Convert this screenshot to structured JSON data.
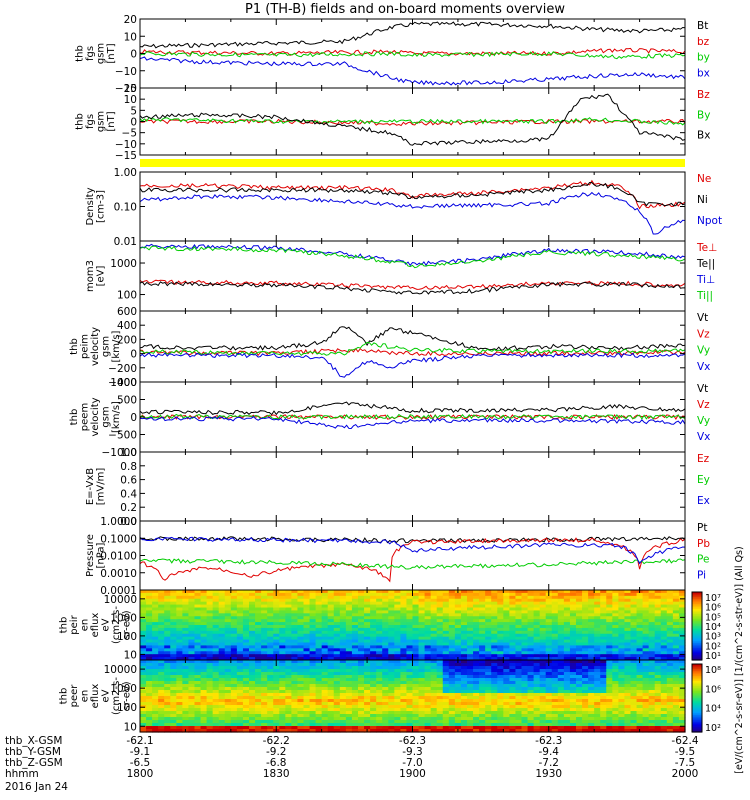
{
  "title": "P1 (TH-B) fields and on-board moments overview",
  "date_label": "2016 Jan 24",
  "ephemeris": {
    "row_labels": [
      "thb_X-GSM",
      "thb_Y-GSM",
      "thb_Z-GSM",
      "hhmm"
    ],
    "columns": [
      [
        "-62.1",
        "-9.1",
        "-6.5",
        "1800"
      ],
      [
        "-62.2",
        "-9.2",
        "-6.8",
        "1830"
      ],
      [
        "-62.3",
        "-9.3",
        "-7.0",
        "1900"
      ],
      [
        "-62.3",
        "-9.4",
        "-7.2",
        "1930"
      ],
      [
        "-62.4",
        "-9.5",
        "-7.5",
        "2000"
      ]
    ]
  },
  "colors": {
    "black": "#000000",
    "red": "#e00000",
    "green": "#00cc00",
    "blue": "#0000e0",
    "yellow": "#ffff00"
  },
  "chart_data": [
    {
      "type": "line",
      "ylabel": [
        "thb",
        "fgs",
        "gsm",
        "[nT]"
      ],
      "ylim": [
        -20,
        20
      ],
      "ticks": [
        {
          "v": 20,
          "t": "20"
        },
        {
          "v": 10,
          "t": "10"
        },
        {
          "v": 0,
          "t": "0"
        },
        {
          "v": -10,
          "t": "−10"
        },
        {
          "v": -20,
          "t": "−20"
        }
      ],
      "series": [
        {
          "name": "Bt",
          "color": "black",
          "x": [
            1800,
            1815,
            1830,
            1845,
            1855,
            1900,
            1915,
            1930,
            1940,
            1950,
            2000
          ],
          "y": [
            4,
            5,
            6,
            7,
            15,
            17,
            17,
            16,
            14,
            13,
            14
          ]
        },
        {
          "name": "bz",
          "color": "red",
          "x": [
            1800,
            1830,
            1855,
            1900,
            1930,
            1945,
            2000
          ],
          "y": [
            1,
            0,
            1,
            0,
            0,
            2,
            1
          ]
        },
        {
          "name": "by",
          "color": "green",
          "x": [
            1800,
            1830,
            1855,
            1900,
            1930,
            1945,
            2000
          ],
          "y": [
            0,
            -1,
            0,
            -1,
            0,
            -2,
            -1
          ]
        },
        {
          "name": "bx",
          "color": "blue",
          "x": [
            1800,
            1815,
            1830,
            1845,
            1855,
            1900,
            1915,
            1930,
            1940,
            1950,
            2000
          ],
          "y": [
            -3,
            -5,
            -6,
            -6,
            -14,
            -17,
            -17,
            -15,
            -13,
            -12,
            -14
          ]
        }
      ]
    },
    {
      "type": "line",
      "ylabel": [
        "thb",
        "fgs",
        "gsm",
        "[nT]"
      ],
      "ylim": [
        -15,
        15
      ],
      "ticks": [
        {
          "v": 15,
          "t": "15"
        },
        {
          "v": 10,
          "t": "10"
        },
        {
          "v": 5,
          "t": "5"
        },
        {
          "v": 0,
          "t": "0"
        },
        {
          "v": -5,
          "t": "−5"
        },
        {
          "v": -10,
          "t": "−10"
        },
        {
          "v": -15,
          "t": "−15"
        }
      ],
      "series": [
        {
          "name": "Bz",
          "color": "red",
          "x": [
            1800,
            1830,
            1900,
            1930,
            1940,
            2000
          ],
          "y": [
            0,
            0,
            -1,
            0,
            0,
            0
          ]
        },
        {
          "name": "By",
          "color": "green",
          "x": [
            1800,
            1830,
            1900,
            1930,
            1940,
            2000
          ],
          "y": [
            1,
            0,
            0,
            0,
            1,
            -1
          ]
        },
        {
          "name": "Bx",
          "color": "black",
          "x": [
            1800,
            1815,
            1830,
            1855,
            1900,
            1930,
            1937,
            1943,
            1950,
            2000
          ],
          "y": [
            2,
            3,
            2,
            -5,
            -10,
            -8,
            10,
            12,
            -5,
            -8
          ]
        }
      ]
    },
    {
      "type": "bar",
      "description": "flag bar",
      "color": "yellow"
    },
    {
      "type": "line",
      "scale": "log",
      "ylabel": [
        "Density",
        "[cm-3]"
      ],
      "ylim": [
        0.01,
        1.0
      ],
      "ticks": [
        {
          "v": 1.0,
          "t": "1.00"
        },
        {
          "v": 0.1,
          "t": "0.10"
        },
        {
          "v": 0.01,
          "t": "0.01"
        }
      ],
      "series": [
        {
          "name": "Ne",
          "color": "red",
          "x": [
            1800,
            1815,
            1830,
            1845,
            1855,
            1900,
            1915,
            1930,
            1940,
            1945,
            1950,
            2000
          ],
          "y": [
            0.4,
            0.4,
            0.35,
            0.35,
            0.3,
            0.2,
            0.25,
            0.35,
            0.5,
            0.4,
            0.1,
            0.12
          ]
        },
        {
          "name": "Ni",
          "color": "black",
          "x": [
            1800,
            1815,
            1830,
            1845,
            1855,
            1900,
            1915,
            1930,
            1940,
            1945,
            1950,
            2000
          ],
          "y": [
            0.3,
            0.3,
            0.3,
            0.3,
            0.25,
            0.18,
            0.22,
            0.3,
            0.45,
            0.35,
            0.12,
            0.12
          ]
        },
        {
          "name": "Npot",
          "color": "blue",
          "x": [
            1800,
            1815,
            1830,
            1900,
            1930,
            1940,
            1953,
            2000
          ],
          "y": [
            0.15,
            0.2,
            0.18,
            0.1,
            0.12,
            0.25,
            0.015,
            0.04
          ]
        }
      ]
    },
    {
      "type": "line",
      "scale": "log",
      "ylabel": [
        "mom3",
        "[eV]"
      ],
      "ylim": [
        30,
        5000
      ],
      "ticks": [
        {
          "v": 1000,
          "t": "1000"
        },
        {
          "v": 100,
          "t": "100"
        }
      ],
      "series": [
        {
          "name": "Te⊥",
          "color": "red",
          "x": [
            1800,
            1830,
            1900,
            1915,
            1930,
            1945,
            2000
          ],
          "y": [
            250,
            230,
            160,
            180,
            230,
            230,
            200
          ]
        },
        {
          "name": "Te||",
          "color": "black",
          "x": [
            1800,
            1830,
            1900,
            1915,
            1930,
            1945,
            2000
          ],
          "y": [
            220,
            200,
            110,
            130,
            210,
            210,
            180
          ]
        },
        {
          "name": "Ti⊥",
          "color": "blue",
          "x": [
            1800,
            1830,
            1900,
            1915,
            1930,
            1945,
            2000
          ],
          "y": [
            3500,
            3000,
            900,
            1300,
            2500,
            2200,
            1500
          ]
        },
        {
          "name": "Ti||",
          "color": "green",
          "x": [
            1800,
            1830,
            1900,
            1915,
            1930,
            1945,
            2000
          ],
          "y": [
            3000,
            2600,
            800,
            1100,
            2200,
            1800,
            1300
          ]
        }
      ]
    },
    {
      "type": "line",
      "ylabel": [
        "thb",
        "peim",
        "velocity",
        "gsm",
        "[km/s]"
      ],
      "ylim": [
        -400,
        600
      ],
      "ticks": [
        {
          "v": 600,
          "t": "600"
        },
        {
          "v": 400,
          "t": "400"
        },
        {
          "v": 200,
          "t": "200"
        },
        {
          "v": 0,
          "t": "0"
        },
        {
          "v": -200,
          "t": "−200"
        },
        {
          "v": -400,
          "t": "−400"
        }
      ],
      "series": [
        {
          "name": "Vt",
          "color": "black",
          "x": [
            1800,
            1815,
            1830,
            1840,
            1845,
            1850,
            1855,
            1900,
            1915,
            1930,
            1945,
            2000
          ],
          "y": [
            100,
            80,
            80,
            150,
            400,
            150,
            350,
            300,
            60,
            100,
            80,
            120
          ]
        },
        {
          "name": "Vz",
          "color": "red",
          "x": [
            1800,
            1830,
            1845,
            1900,
            1930,
            2000
          ],
          "y": [
            20,
            0,
            50,
            0,
            0,
            20
          ]
        },
        {
          "name": "Vy",
          "color": "green",
          "x": [
            1800,
            1830,
            1845,
            1850,
            1900,
            1930,
            2000
          ],
          "y": [
            30,
            0,
            0,
            150,
            50,
            30,
            40
          ]
        },
        {
          "name": "Vx",
          "color": "blue",
          "x": [
            1800,
            1830,
            1840,
            1845,
            1850,
            1855,
            1900,
            1915,
            1930,
            2000
          ],
          "y": [
            -20,
            -30,
            -50,
            -350,
            -100,
            -200,
            -100,
            -30,
            -20,
            -30
          ]
        }
      ]
    },
    {
      "type": "line",
      "ylabel": [
        "thb",
        "peem",
        "velocity",
        "gsm",
        "[km/s]"
      ],
      "ylim": [
        -1000,
        1000
      ],
      "ticks": [
        {
          "v": 1000,
          "t": "1000"
        },
        {
          "v": 500,
          "t": "500"
        },
        {
          "v": 0,
          "t": "0"
        },
        {
          "v": -500,
          "t": "−500"
        },
        {
          "v": -1000,
          "t": "−1000"
        }
      ],
      "series": [
        {
          "name": "Vt",
          "color": "black",
          "x": [
            1800,
            1830,
            1845,
            1900,
            1930,
            1945,
            2000
          ],
          "y": [
            150,
            120,
            400,
            180,
            200,
            300,
            200
          ]
        },
        {
          "name": "Vz",
          "color": "red",
          "x": [
            1800,
            1830,
            1900,
            2000
          ],
          "y": [
            0,
            0,
            0,
            0
          ]
        },
        {
          "name": "Vy",
          "color": "green",
          "x": [
            1800,
            1830,
            1900,
            2000
          ],
          "y": [
            20,
            0,
            10,
            0
          ]
        },
        {
          "name": "Vx",
          "color": "blue",
          "x": [
            1800,
            1830,
            1845,
            1900,
            1930,
            2000
          ],
          "y": [
            -50,
            -50,
            -300,
            -100,
            -100,
            -150
          ]
        }
      ]
    },
    {
      "type": "line",
      "ylabel": [
        "E=-VxB",
        "[mV/m]"
      ],
      "ylim": [
        0,
        1
      ],
      "ticks": [
        {
          "v": 1.0,
          "t": "1.0"
        },
        {
          "v": 0.8,
          "t": "0.8"
        },
        {
          "v": 0.6,
          "t": "0.6"
        },
        {
          "v": 0.4,
          "t": "0.4"
        },
        {
          "v": 0.2,
          "t": "0.2"
        },
        {
          "v": 0.0,
          "t": "0.0"
        }
      ],
      "series": [
        {
          "name": "Ez",
          "color": "red",
          "x": [],
          "y": []
        },
        {
          "name": "Ey",
          "color": "green",
          "x": [],
          "y": []
        },
        {
          "name": "Ex",
          "color": "blue",
          "x": [],
          "y": []
        }
      ]
    },
    {
      "type": "line",
      "scale": "log",
      "ylabel": [
        "Pressure",
        "[nPa]"
      ],
      "ylim": [
        0.0001,
        1.0
      ],
      "ticks": [
        {
          "v": 1.0,
          "t": "1.0000"
        },
        {
          "v": 0.1,
          "t": "0.1000"
        },
        {
          "v": 0.01,
          "t": "0.0100"
        },
        {
          "v": 0.001,
          "t": "0.0010"
        },
        {
          "v": 0.0001,
          "t": "0.0001"
        }
      ],
      "series": [
        {
          "name": "Pt",
          "color": "black",
          "x": [
            1800,
            1830,
            1900,
            1930,
            2000
          ],
          "y": [
            0.1,
            0.09,
            0.07,
            0.08,
            0.1
          ]
        },
        {
          "name": "Pb",
          "color": "red",
          "x": [
            1800,
            1805,
            1815,
            1825,
            1835,
            1845,
            1855,
            1900,
            1930,
            1940,
            1950,
            2000
          ],
          "y": [
            0.004,
            0.0004,
            0.002,
            0.0006,
            0.002,
            0.003,
            0.0003,
            0.06,
            0.08,
            0.08,
            0.002,
            0.08
          ]
        },
        {
          "name": "Pe",
          "color": "green",
          "x": [
            1800,
            1830,
            1900,
            1930,
            1945,
            2000
          ],
          "y": [
            0.005,
            0.004,
            0.002,
            0.003,
            0.004,
            0.005
          ]
        },
        {
          "name": "Pi",
          "color": "blue",
          "x": [
            1800,
            1830,
            1855,
            1900,
            1930,
            1945,
            1950,
            2000
          ],
          "y": [
            0.09,
            0.08,
            0.06,
            0.02,
            0.04,
            0.04,
            0.003,
            0.03
          ]
        }
      ]
    },
    {
      "type": "heatmap",
      "scale": "log",
      "ylabel": [
        "thb",
        "peir",
        "en",
        "eflux",
        "eV",
        "(cm2-s-",
        "sr-eV)"
      ],
      "ylim": [
        5,
        30000
      ],
      "ticks": [
        {
          "v": 10000,
          "t": "10000"
        },
        {
          "v": 1000,
          "t": "1000"
        },
        {
          "v": 100,
          "t": "100"
        },
        {
          "v": 10,
          "t": "10"
        }
      ]
    },
    {
      "type": "heatmap",
      "scale": "log",
      "ylabel": [
        "thb",
        "peer",
        "en",
        "eflux",
        "eV",
        "(cm2-s-",
        "sr-eV)"
      ],
      "ylim": [
        5,
        30000
      ],
      "ticks": [
        {
          "v": 10000,
          "t": "10000"
        },
        {
          "v": 1000,
          "t": "1000"
        },
        {
          "v": 100,
          "t": "100"
        },
        {
          "v": 10,
          "t": "10"
        }
      ]
    }
  ],
  "colorbar": {
    "upper_ticks": [
      {
        "p": 7,
        "t": "10⁷"
      },
      {
        "p": 6,
        "t": "10⁶"
      },
      {
        "p": 5,
        "t": "10⁵"
      },
      {
        "p": 4,
        "t": "10⁴"
      },
      {
        "p": 3,
        "t": "10³"
      },
      {
        "p": 2,
        "t": "10²"
      },
      {
        "p": 1,
        "t": "10¹"
      }
    ],
    "lower_ticks": [
      {
        "p": 8,
        "t": "10⁸"
      },
      {
        "p": 6,
        "t": "10⁶"
      },
      {
        "p": 4,
        "t": "10⁴"
      },
      {
        "p": 2,
        "t": "10²"
      }
    ],
    "label": "[eV/(cm^2-s-sr-eV)] [1/(cm^2-s-str-eV)] (All Qs)"
  }
}
